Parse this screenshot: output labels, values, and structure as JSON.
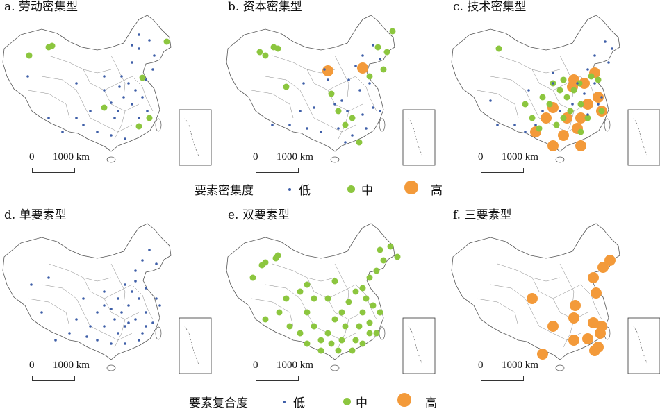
{
  "colors": {
    "low": "#3f5fa8",
    "mid": "#8cc63f",
    "high": "#f39a3a",
    "boundary": "#555555"
  },
  "panels": [
    {
      "title": "a. 劳动密集型",
      "scale_zero": "0",
      "scale_distance": "1000 km"
    },
    {
      "title": "b. 资本密集型",
      "scale_zero": "0",
      "scale_distance": "1000 km"
    },
    {
      "title": "c. 技术密集型",
      "scale_zero": "0",
      "scale_distance": "1000 km"
    },
    {
      "title": "d. 单要素型",
      "scale_zero": "0",
      "scale_distance": "1000 km"
    },
    {
      "title": "e. 双要素型",
      "scale_zero": "0",
      "scale_distance": "1000 km"
    },
    {
      "title": "f. 三要素型",
      "scale_zero": "0",
      "scale_distance": "1000 km"
    }
  ],
  "legend1": {
    "title": "要素密集度",
    "low": "低",
    "mid": "中",
    "high": "高"
  },
  "legend2": {
    "title": "要素复合度",
    "low": "低",
    "mid": "中",
    "high": "高"
  }
}
